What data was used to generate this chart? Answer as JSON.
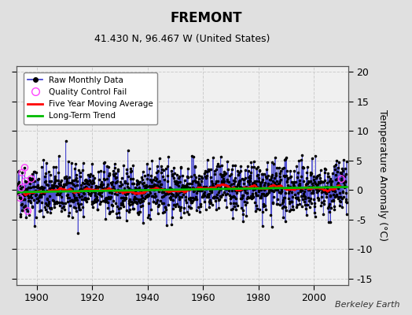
{
  "title": "FREMONT",
  "subtitle": "41.430 N, 96.467 W (United States)",
  "ylabel": "Temperature Anomaly (°C)",
  "watermark": "Berkeley Earth",
  "year_start": 1893,
  "year_end": 2012,
  "ylim": [
    -16,
    21
  ],
  "yticks": [
    -15,
    -10,
    -5,
    0,
    5,
    10,
    15,
    20
  ],
  "xticks": [
    1900,
    1920,
    1940,
    1960,
    1980,
    2000
  ],
  "bg_color": "#e0e0e0",
  "plot_bg_color": "#f0f0f0",
  "grid_color": "#cccccc",
  "raw_line_color": "#3333cc",
  "raw_marker_color": "#000000",
  "qc_color": "#ff44ff",
  "moving_avg_color": "#ff0000",
  "trend_color": "#00bb00",
  "seed": 42,
  "noise_std": 2.2,
  "n_qc_early": 7,
  "n_qc_late": 1
}
